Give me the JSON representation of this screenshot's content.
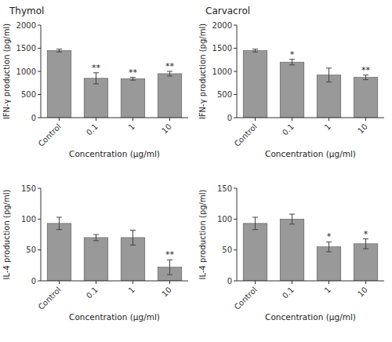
{
  "chart_data": [
    {
      "type": "bar",
      "title": "Thymol",
      "ylabel": "IFN-γ production (pg/ml)",
      "xlabel": "Concentration (µg/ml)",
      "categories": [
        "Control",
        "0.1",
        "1",
        "10"
      ],
      "values": [
        1450,
        850,
        840,
        950
      ],
      "errors": [
        30,
        120,
        30,
        50
      ],
      "annotations": [
        null,
        "**",
        "**",
        "**"
      ],
      "color": "#999999",
      "ylim": [
        0,
        2000
      ],
      "yticks": [
        0,
        500,
        1000,
        1500,
        2000
      ],
      "grid": false
    },
    {
      "type": "bar",
      "title": "Carvacrol",
      "ylabel": "IFN-γ production (pg/ml)",
      "xlabel": "Concentration (µg/ml)",
      "categories": [
        "Control",
        "0.1",
        "1",
        "10"
      ],
      "values": [
        1450,
        1200,
        920,
        870
      ],
      "errors": [
        30,
        60,
        150,
        50
      ],
      "annotations": [
        null,
        "*",
        null,
        "**"
      ],
      "color": "#999999",
      "ylim": [
        0,
        2000
      ],
      "yticks": [
        0,
        500,
        1000,
        1500,
        2000
      ],
      "grid": false
    },
    {
      "type": "bar",
      "ylabel": "IL-4 production (pg/ml)",
      "xlabel": "Concentration (µg/ml)",
      "categories": [
        "Control",
        "0.1",
        "1",
        "10"
      ],
      "values": [
        93,
        70,
        70,
        22
      ],
      "errors": [
        10,
        5,
        12,
        12
      ],
      "annotations": [
        null,
        null,
        null,
        "**"
      ],
      "color": "#999999",
      "ylim": [
        0,
        150
      ],
      "yticks": [
        0,
        50,
        100,
        150
      ],
      "grid": false
    },
    {
      "type": "bar",
      "ylabel": "IL-4 production (pg/ml)",
      "xlabel": "Concentration (µg/ml)",
      "categories": [
        "Control",
        "0.1",
        "1",
        "10"
      ],
      "values": [
        93,
        100,
        55,
        60
      ],
      "errors": [
        10,
        8,
        8,
        8
      ],
      "annotations": [
        null,
        null,
        "*",
        "*"
      ],
      "color": "#999999",
      "ylim": [
        0,
        150
      ],
      "yticks": [
        0,
        50,
        100,
        150
      ],
      "grid": false
    }
  ]
}
